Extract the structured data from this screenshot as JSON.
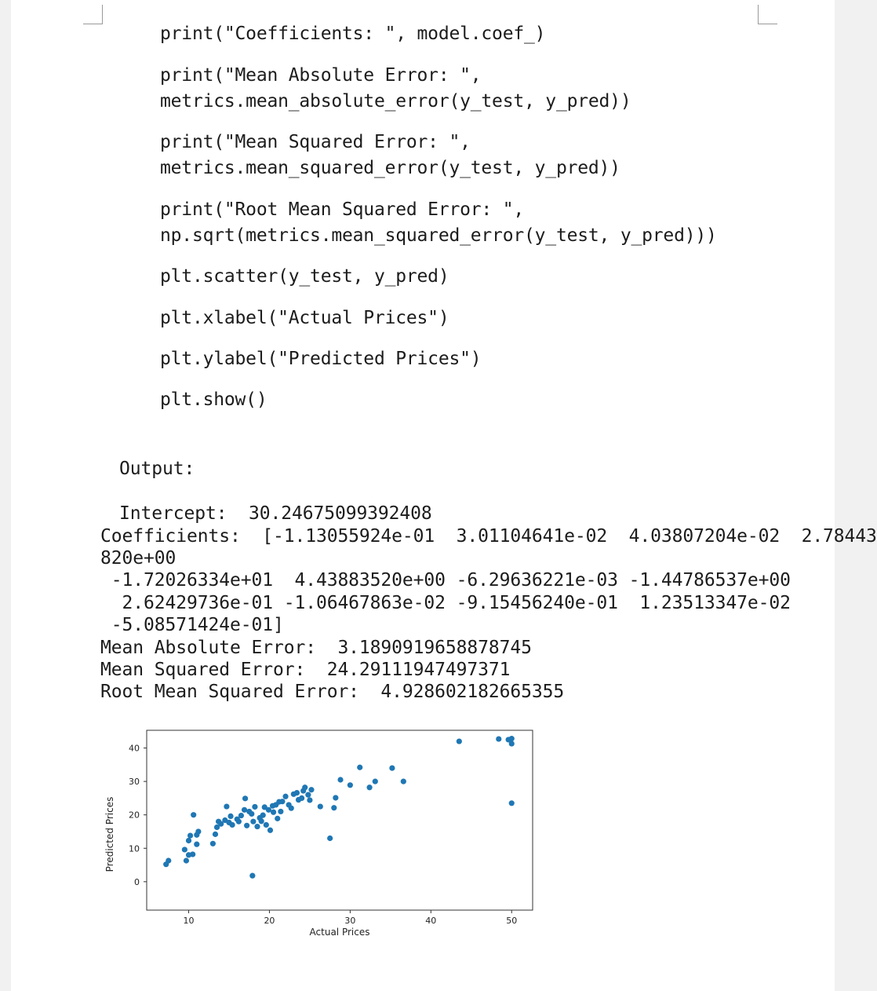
{
  "code_lines": [
    "print(\"Coefficients: \", model.coef_)",
    "print(\"Mean Absolute Error: \",\nmetrics.mean_absolute_error(y_test, y_pred))",
    "print(\"Mean Squared Error: \",\nmetrics.mean_squared_error(y_test, y_pred))",
    "print(\"Root Mean Squared Error: \",\nnp.sqrt(metrics.mean_squared_error(y_test, y_pred)))",
    "plt.scatter(y_test, y_pred)",
    "plt.xlabel(\"Actual Prices\")",
    "plt.ylabel(\"Predicted Prices\")",
    "plt.show()"
  ],
  "output": {
    "heading": "Output:",
    "intercept": "Intercept:  30.24675099392408",
    "coefficients_lines": [
      "Coefficients:  [-1.13055924e-01  3.01104641e-02  4.03807204e-02  2.78443",
      "820e+00",
      " -1.72026334e+01  4.43883520e+00 -6.29636221e-03 -1.44786537e+00",
      "  2.62429736e-01 -1.06467863e-02 -9.15456240e-01  1.23513347e-02",
      " -5.08571424e-01]"
    ],
    "mae": "Mean Absolute Error:  3.1890919658878745",
    "mse": "Mean Squared Error:  24.29111947497371",
    "rmse": "Root Mean Squared Error:  4.928602182665355"
  },
  "chart_data": {
    "type": "scatter",
    "xlabel": "Actual Prices",
    "ylabel": "Predicted Prices",
    "xlim": [
      4.8,
      52.6
    ],
    "ylim": [
      -8.5,
      45.3
    ],
    "xticks": [
      10,
      20,
      30,
      40,
      50
    ],
    "yticks": [
      0,
      10,
      20,
      30,
      40
    ],
    "grid": false,
    "color": "#1f77b4",
    "x": [
      10.5,
      10.0,
      11.0,
      7.5,
      9.5,
      10.0,
      9.7,
      10.2,
      10.6,
      11.2,
      11.0,
      13.0,
      13.3,
      13.5,
      13.7,
      14.0,
      14.5,
      14.7,
      15.0,
      15.2,
      15.4,
      16.0,
      16.2,
      16.5,
      16.9,
      17.0,
      17.2,
      17.5,
      17.8,
      18.0,
      18.2,
      18.5,
      18.8,
      19.0,
      19.2,
      19.4,
      19.6,
      19.9,
      20.1,
      20.4,
      20.5,
      20.8,
      21.0,
      21.2,
      21.4,
      21.6,
      22.0,
      22.4,
      22.7,
      23.0,
      23.4,
      23.6,
      24.0,
      24.2,
      24.4,
      24.8,
      25.0,
      25.2,
      26.3,
      27.5,
      28.0,
      28.2,
      28.8,
      30.0,
      31.2,
      32.4,
      33.1,
      35.2,
      36.6,
      43.5,
      48.4,
      49.6,
      50.0,
      50.0,
      50.0,
      7.2,
      17.9
    ],
    "y": [
      8.2,
      8.0,
      11.2,
      6.3,
      9.6,
      12.3,
      6.3,
      13.8,
      20.0,
      15.0,
      14.0,
      11.4,
      14.2,
      16.3,
      18.0,
      17.3,
      18.4,
      22.5,
      17.7,
      19.6,
      17.0,
      18.7,
      18.0,
      19.8,
      21.5,
      24.9,
      16.8,
      21.0,
      20.3,
      18.0,
      22.4,
      16.5,
      19.1,
      18.1,
      19.9,
      22.3,
      17.0,
      21.5,
      15.4,
      22.7,
      20.8,
      23.0,
      18.9,
      23.9,
      21.0,
      24.0,
      25.5,
      23.0,
      22.0,
      26.2,
      26.6,
      24.5,
      25.0,
      27.2,
      28.2,
      26.0,
      24.4,
      27.5,
      22.5,
      13.0,
      22.1,
      25.1,
      30.5,
      28.9,
      34.2,
      28.2,
      30.0,
      34.0,
      30.0,
      42.0,
      42.7,
      42.5,
      41.3,
      42.8,
      23.5,
      5.2,
      1.8
    ]
  }
}
